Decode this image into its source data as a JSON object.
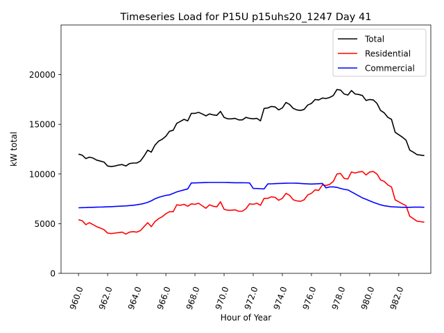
{
  "chart_data": {
    "type": "line",
    "title": "Timeseries Load for P15U p15uhs20_1247  Day 41",
    "xlabel": "Hour of Year",
    "ylabel": "kW total",
    "xlim": [
      958.8,
      984.2
    ],
    "ylim": [
      0,
      25000
    ],
    "x_ticks": [
      960,
      962,
      964,
      966,
      968,
      970,
      972,
      974,
      976,
      978,
      980,
      982
    ],
    "x_tick_labels": [
      "960.0",
      "962.0",
      "964.0",
      "966.0",
      "968.0",
      "970.0",
      "972.0",
      "974.0",
      "976.0",
      "978.0",
      "980.0",
      "982.0"
    ],
    "y_ticks": [
      0,
      5000,
      10000,
      15000,
      20000
    ],
    "y_tick_labels": [
      "0",
      "5000",
      "10000",
      "15000",
      "20000"
    ],
    "legend_position": "top-right",
    "x": [
      960.0,
      960.25,
      960.5,
      960.75,
      961.0,
      961.25,
      961.5,
      961.75,
      962.0,
      962.25,
      962.5,
      962.75,
      963.0,
      963.25,
      963.5,
      963.75,
      964.0,
      964.25,
      964.5,
      964.75,
      965.0,
      965.25,
      965.5,
      965.75,
      966.0,
      966.25,
      966.5,
      966.75,
      967.0,
      967.25,
      967.5,
      967.75,
      968.0,
      968.25,
      968.5,
      968.75,
      969.0,
      969.25,
      969.5,
      969.75,
      970.0,
      970.25,
      970.5,
      970.75,
      971.0,
      971.25,
      971.5,
      971.75,
      972.0,
      972.25,
      972.5,
      972.75,
      973.0,
      973.25,
      973.5,
      973.75,
      974.0,
      974.25,
      974.5,
      974.75,
      975.0,
      975.25,
      975.5,
      975.75,
      976.0,
      976.25,
      976.5,
      976.75,
      977.0,
      977.25,
      977.5,
      977.75,
      978.0,
      978.25,
      978.5,
      978.75,
      979.0,
      979.25,
      979.5,
      979.75,
      980.0,
      980.25,
      980.5,
      980.75,
      981.0,
      981.25,
      981.5,
      981.75,
      982.0,
      982.25,
      982.5,
      982.75,
      983.0,
      983.25,
      983.5,
      983.75
    ],
    "series": [
      {
        "name": "Total",
        "color": "#000000",
        "values": [
          12000,
          11900,
          11550,
          11700,
          11600,
          11400,
          11300,
          11200,
          10800,
          10750,
          10800,
          10900,
          10950,
          10800,
          11050,
          11100,
          11100,
          11300,
          11800,
          12400,
          12200,
          12900,
          13300,
          13500,
          13800,
          14300,
          14400,
          15100,
          15300,
          15500,
          15350,
          16100,
          16100,
          16200,
          16050,
          15850,
          16050,
          15950,
          15900,
          16300,
          15700,
          15550,
          15550,
          15600,
          15450,
          15450,
          15700,
          15600,
          15550,
          15600,
          15350,
          16600,
          16650,
          16800,
          16750,
          16450,
          16650,
          17200,
          17000,
          16600,
          16450,
          16400,
          16500,
          16950,
          17100,
          17500,
          17450,
          17650,
          17600,
          17700,
          17900,
          18500,
          18450,
          18050,
          17950,
          18400,
          18050,
          18000,
          17900,
          17400,
          17500,
          17450,
          17100,
          16400,
          16150,
          15700,
          15500,
          14200,
          13950,
          13700,
          13400,
          12400,
          12200,
          11950,
          11900,
          11850
        ]
      },
      {
        "name": "Residential",
        "color": "#ff0000",
        "values": [
          5400,
          5300,
          4900,
          5100,
          4900,
          4700,
          4550,
          4400,
          4050,
          4000,
          4050,
          4100,
          4150,
          3950,
          4150,
          4200,
          4150,
          4300,
          4700,
          5100,
          4700,
          5200,
          5500,
          5700,
          6000,
          6200,
          6200,
          6900,
          6850,
          6950,
          6750,
          7000,
          6950,
          7050,
          6800,
          6550,
          6900,
          6750,
          6700,
          7200,
          6450,
          6350,
          6350,
          6400,
          6250,
          6250,
          6500,
          7000,
          6950,
          7050,
          6850,
          7550,
          7550,
          7700,
          7650,
          7350,
          7550,
          8050,
          7850,
          7400,
          7300,
          7250,
          7400,
          7900,
          8050,
          8400,
          8350,
          8900,
          8850,
          8950,
          9250,
          10000,
          10050,
          9550,
          9500,
          10200,
          10100,
          10200,
          10250,
          9900,
          10200,
          10250,
          10000,
          9400,
          9250,
          8900,
          8700,
          7400,
          7200,
          7000,
          6800,
          5750,
          5500,
          5250,
          5200,
          5150
        ]
      },
      {
        "name": "Commercial",
        "color": "#0000ff",
        "values": [
          6600,
          6610,
          6620,
          6640,
          6650,
          6660,
          6670,
          6680,
          6700,
          6710,
          6730,
          6750,
          6770,
          6790,
          6820,
          6850,
          6900,
          6960,
          7030,
          7150,
          7300,
          7500,
          7650,
          7750,
          7850,
          7900,
          8050,
          8200,
          8300,
          8400,
          8500,
          9100,
          9100,
          9120,
          9130,
          9140,
          9150,
          9150,
          9150,
          9150,
          9150,
          9140,
          9130,
          9120,
          9120,
          9120,
          9110,
          9100,
          8550,
          8540,
          8520,
          8500,
          9000,
          9010,
          9030,
          9050,
          9060,
          9070,
          9080,
          9080,
          9070,
          9050,
          9020,
          9000,
          8990,
          9000,
          9020,
          9050,
          8600,
          8700,
          8700,
          8650,
          8550,
          8450,
          8400,
          8200,
          8000,
          7800,
          7600,
          7450,
          7300,
          7150,
          7020,
          6900,
          6800,
          6750,
          6700,
          6680,
          6660,
          6650,
          6650,
          6650,
          6660,
          6670,
          6660,
          6650
        ]
      }
    ]
  }
}
